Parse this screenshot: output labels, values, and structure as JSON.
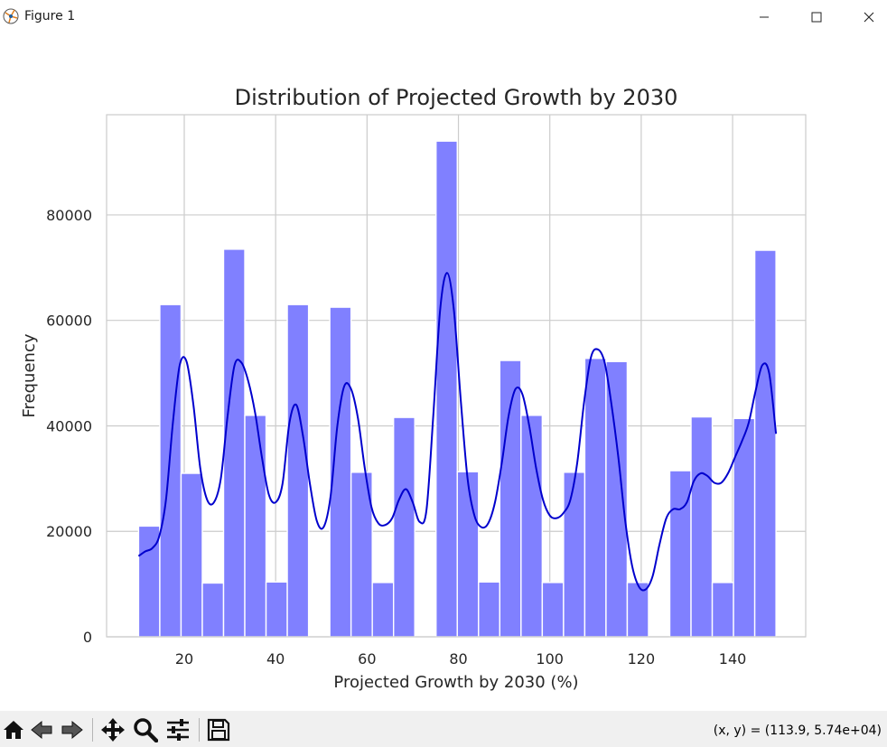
{
  "window": {
    "title": "Figure 1",
    "minimize_icon": "minimize-icon",
    "maximize_icon": "maximize-icon",
    "close_icon": "close-icon"
  },
  "toolbar": {
    "tools": [
      "home-icon",
      "back-arrow-icon",
      "forward-arrow-icon",
      "pan-move-icon",
      "zoom-magnifier-icon",
      "configure-subplots-icon",
      "save-disk-icon"
    ],
    "coords_text": "(x, y) = (113.9, 5.74e+04)"
  },
  "colors": {
    "bar_fill": "#8080ff",
    "kde_line": "#0000cd",
    "grid": "#cccccc",
    "axes_edge": "#cccccc"
  },
  "chart_data": {
    "type": "bar",
    "title": "Distribution of Projected Growth by 2030",
    "xlabel": "Projected Growth by 2030 (%)",
    "ylabel": "Frequency",
    "xlim": [
      3,
      156
    ],
    "ylim": [
      0,
      99000
    ],
    "xticks": [
      20,
      40,
      60,
      80,
      100,
      120,
      140
    ],
    "yticks": [
      0,
      20000,
      40000,
      60000,
      80000
    ],
    "grid": true,
    "bin_width": 4.65,
    "bin_edges_start": 10,
    "values": [
      21000,
      63000,
      31000,
      10200,
      73500,
      42000,
      10400,
      63000,
      0,
      62500,
      31200,
      10300,
      41600,
      0,
      94000,
      31300,
      10400,
      52400,
      42000,
      10300,
      31200,
      52800,
      52200,
      10300,
      0,
      31500,
      41700,
      10300,
      41400,
      73300
    ],
    "series": [
      {
        "name": "kde",
        "x": [
          10,
          11.5,
          13,
          14.5,
          16,
          17.5,
          19,
          20.5,
          22,
          23.5,
          25,
          26.5,
          28,
          29.5,
          31,
          32.5,
          34,
          35.5,
          37,
          38.5,
          40,
          41.5,
          43,
          44.5,
          46,
          47.5,
          49,
          50.5,
          52,
          53.5,
          55,
          56.5,
          58,
          59.5,
          61,
          62.5,
          64,
          65.5,
          67,
          68.5,
          70,
          71.5,
          73,
          74.5,
          76,
          77.5,
          79,
          80.5,
          82,
          83.5,
          85,
          86.5,
          88,
          89.5,
          91,
          92.5,
          94,
          95.5,
          97,
          98.5,
          100,
          101.5,
          103,
          104.5,
          106,
          107.5,
          109,
          110.5,
          112,
          113.5,
          115,
          116.5,
          118,
          119.5,
          121,
          122.5,
          124,
          125.5,
          127,
          128.5,
          130,
          131.5,
          133,
          134.5,
          136,
          137.5,
          139,
          140.5,
          142,
          143.5,
          145,
          146.5,
          148,
          149.5
        ],
        "y": [
          15300,
          16200,
          16800,
          19000,
          26000,
          40500,
          51500,
          52200,
          44000,
          32000,
          26000,
          25500,
          30000,
          42000,
          51500,
          52000,
          48500,
          42500,
          34000,
          27000,
          25500,
          29000,
          40500,
          44000,
          38000,
          29000,
          22000,
          20800,
          26500,
          40000,
          47500,
          47000,
          41500,
          32000,
          24500,
          21500,
          21200,
          22500,
          26000,
          28000,
          25500,
          21800,
          24000,
          42000,
          62000,
          69000,
          62000,
          45000,
          30000,
          23000,
          20800,
          21500,
          25500,
          33000,
          42000,
          47000,
          46000,
          40000,
          32000,
          26000,
          23000,
          22500,
          23500,
          26000,
          33000,
          44500,
          53000,
          54500,
          52000,
          44000,
          34000,
          22000,
          13500,
          9500,
          9000,
          11500,
          17500,
          22500,
          24200,
          24200,
          25500,
          29500,
          31000,
          30500,
          29200,
          29200,
          31000,
          34000,
          37000,
          40500,
          46500,
          51500,
          50000,
          38500
        ]
      }
    ]
  }
}
